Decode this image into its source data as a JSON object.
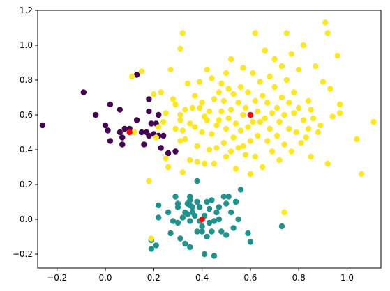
{
  "chart_data": {
    "type": "scatter",
    "title": "",
    "xlabel": "",
    "ylabel": "",
    "xlim": [
      -0.28,
      1.14
    ],
    "ylim": [
      -0.28,
      1.2
    ],
    "grid": false,
    "xticks": [
      -0.2,
      0.0,
      0.2,
      0.4,
      0.6,
      0.8,
      1.0
    ],
    "xtick_labels": [
      "−0.2",
      "0.0",
      "0.2",
      "0.4",
      "0.6",
      "0.8",
      "1.0"
    ],
    "yticks": [
      -0.2,
      0.0,
      0.2,
      0.4,
      0.6,
      0.8,
      1.0,
      1.2
    ],
    "ytick_labels": [
      "−0.2",
      "0.0",
      "0.2",
      "0.4",
      "0.6",
      "0.8",
      "1.0",
      "1.2"
    ],
    "series": [
      {
        "color": "#440154",
        "points": [
          [
            -0.26,
            0.54
          ],
          [
            -0.09,
            0.73
          ],
          [
            -0.04,
            0.6
          ],
          [
            0.0,
            0.54
          ],
          [
            0.02,
            0.66
          ],
          [
            0.01,
            0.51
          ],
          [
            0.02,
            0.45
          ],
          [
            0.06,
            0.63
          ],
          [
            0.06,
            0.5
          ],
          [
            0.07,
            0.43
          ],
          [
            0.07,
            0.47
          ],
          [
            0.08,
            0.52
          ],
          [
            0.1,
            0.52
          ],
          [
            0.12,
            0.5
          ],
          [
            0.13,
            0.83
          ],
          [
            0.13,
            0.57
          ],
          [
            0.15,
            0.5
          ],
          [
            0.16,
            0.43
          ],
          [
            0.17,
            0.5
          ],
          [
            0.18,
            0.62
          ],
          [
            0.18,
            0.69
          ],
          [
            0.18,
            0.48
          ],
          [
            0.19,
            0.55
          ],
          [
            0.2,
            0.49
          ],
          [
            0.21,
            0.55
          ],
          [
            0.22,
            0.48
          ],
          [
            0.22,
            0.6
          ],
          [
            0.23,
            0.41
          ],
          [
            0.24,
            0.48
          ],
          [
            0.26,
            0.38
          ],
          [
            0.29,
            0.39
          ]
        ]
      },
      {
        "color": "#21918c",
        "points": [
          [
            0.19,
            -0.12
          ],
          [
            0.19,
            -0.17
          ],
          [
            0.21,
            -0.15
          ],
          [
            0.22,
            0.01
          ],
          [
            0.22,
            0.08
          ],
          [
            0.26,
            0.04
          ],
          [
            0.27,
            -0.08
          ],
          [
            0.28,
            -0.01
          ],
          [
            0.29,
            0.13
          ],
          [
            0.3,
            0.09
          ],
          [
            0.3,
            0.07
          ],
          [
            0.3,
            -0.02
          ],
          [
            0.31,
            -0.11
          ],
          [
            0.32,
            0.01
          ],
          [
            0.33,
            0.04
          ],
          [
            0.33,
            -0.14
          ],
          [
            0.34,
            0.03
          ],
          [
            0.34,
            0.09
          ],
          [
            0.35,
            0.13
          ],
          [
            0.35,
            0.11
          ],
          [
            0.35,
            0.08
          ],
          [
            0.35,
            -0.01
          ],
          [
            0.35,
            -0.16
          ],
          [
            0.36,
            0.07
          ],
          [
            0.36,
            0.04
          ],
          [
            0.37,
            0.02
          ],
          [
            0.38,
            0.22
          ],
          [
            0.38,
            0.1
          ],
          [
            0.38,
            -0.07
          ],
          [
            0.39,
            0.07
          ],
          [
            0.39,
            -0.01
          ],
          [
            0.4,
            -0.04
          ],
          [
            0.4,
            -0.07
          ],
          [
            0.41,
            0.02
          ],
          [
            0.41,
            -0.2
          ],
          [
            0.42,
            -0.1
          ],
          [
            0.42,
            0.1
          ],
          [
            0.43,
            0.06
          ],
          [
            0.43,
            -0.02
          ],
          [
            0.44,
            0.11
          ],
          [
            0.44,
            -0.07
          ],
          [
            0.45,
            -0.01
          ],
          [
            0.45,
            -0.21
          ],
          [
            0.46,
            0.04
          ],
          [
            0.47,
            0.07
          ],
          [
            0.47,
            0.0
          ],
          [
            0.48,
            -0.07
          ],
          [
            0.49,
            0.13
          ],
          [
            0.5,
            0.09
          ],
          [
            0.5,
            -0.09
          ],
          [
            0.51,
            0.13
          ],
          [
            0.52,
            0.04
          ],
          [
            0.53,
            -0.05
          ],
          [
            0.54,
            0.1
          ],
          [
            0.55,
            0.0
          ],
          [
            0.56,
            0.17
          ],
          [
            0.59,
            -0.08
          ],
          [
            0.6,
            -0.13
          ],
          [
            0.73,
            -0.04
          ]
        ]
      },
      {
        "color": "#fde725",
        "points": [
          [
            0.11,
            0.82
          ],
          [
            0.12,
            0.5
          ],
          [
            0.15,
            0.85
          ],
          [
            0.18,
            0.22
          ],
          [
            0.19,
            -0.11
          ],
          [
            0.2,
            0.72
          ],
          [
            0.21,
            0.47
          ],
          [
            0.22,
            0.53
          ],
          [
            0.23,
            0.73
          ],
          [
            0.24,
            0.56
          ],
          [
            0.25,
            0.61
          ],
          [
            0.25,
            0.35
          ],
          [
            0.26,
            0.3
          ],
          [
            0.27,
            0.86
          ],
          [
            0.28,
            0.69
          ],
          [
            0.29,
            0.52
          ],
          [
            0.29,
            0.66
          ],
          [
            0.31,
            0.98
          ],
          [
            0.31,
            0.45
          ],
          [
            0.31,
            0.57
          ],
          [
            0.31,
            0.6
          ],
          [
            0.32,
            0.51
          ],
          [
            0.32,
            1.07
          ],
          [
            0.32,
            0.27
          ],
          [
            0.33,
            0.46
          ],
          [
            0.33,
            0.63
          ],
          [
            0.34,
            0.78
          ],
          [
            0.35,
            0.34
          ],
          [
            0.35,
            0.55
          ],
          [
            0.36,
            0.64
          ],
          [
            0.37,
            0.71
          ],
          [
            0.37,
            0.53
          ],
          [
            0.38,
            0.42
          ],
          [
            0.38,
            0.33
          ],
          [
            0.39,
            0.79
          ],
          [
            0.39,
            0.64
          ],
          [
            0.4,
            0.5
          ],
          [
            0.4,
            0.67
          ],
          [
            0.41,
            0.32
          ],
          [
            0.41,
            0.59
          ],
          [
            0.42,
            0.57
          ],
          [
            0.42,
            0.86
          ],
          [
            0.43,
            0.4
          ],
          [
            0.43,
            0.62
          ],
          [
            0.44,
            0.81
          ],
          [
            0.44,
            0.49
          ],
          [
            0.45,
            0.69
          ],
          [
            0.45,
            0.32
          ],
          [
            0.46,
            0.41
          ],
          [
            0.46,
            0.54
          ],
          [
            0.47,
            0.73
          ],
          [
            0.47,
            0.57
          ],
          [
            0.48,
            0.62
          ],
          [
            0.48,
            0.78
          ],
          [
            0.49,
            0.44
          ],
          [
            0.49,
            0.68
          ],
          [
            0.5,
            0.84
          ],
          [
            0.5,
            0.52
          ],
          [
            0.5,
            0.36
          ],
          [
            0.51,
            0.75
          ],
          [
            0.51,
            0.58
          ],
          [
            0.52,
            0.39
          ],
          [
            0.52,
            0.63
          ],
          [
            0.52,
            0.92
          ],
          [
            0.53,
            0.47
          ],
          [
            0.53,
            0.72
          ],
          [
            0.54,
            0.55
          ],
          [
            0.54,
            0.29
          ],
          [
            0.55,
            0.67
          ],
          [
            0.55,
            0.41
          ],
          [
            0.56,
            0.51
          ],
          [
            0.56,
            0.76
          ],
          [
            0.57,
            0.6
          ],
          [
            0.57,
            0.42
          ],
          [
            0.57,
            0.87
          ],
          [
            0.58,
            0.64
          ],
          [
            0.58,
            0.37
          ],
          [
            0.59,
            0.53
          ],
          [
            0.59,
            0.73
          ],
          [
            0.6,
            0.45
          ],
          [
            0.6,
            0.26
          ],
          [
            0.61,
            0.56
          ],
          [
            0.61,
            0.84
          ],
          [
            0.62,
            0.68
          ],
          [
            0.62,
            0.36
          ],
          [
            0.62,
            1.07
          ],
          [
            0.63,
            0.62
          ],
          [
            0.63,
            0.48
          ],
          [
            0.64,
            0.79
          ],
          [
            0.64,
            0.56
          ],
          [
            0.65,
            0.71
          ],
          [
            0.65,
            0.3
          ],
          [
            0.66,
            0.58
          ],
          [
            0.66,
            0.97
          ],
          [
            0.67,
            0.45
          ],
          [
            0.67,
            0.67
          ],
          [
            0.68,
            0.52
          ],
          [
            0.68,
            0.82
          ],
          [
            0.69,
            0.39
          ],
          [
            0.69,
            0.61
          ],
          [
            0.7,
            0.76
          ],
          [
            0.7,
            0.92
          ],
          [
            0.71,
            0.48
          ],
          [
            0.71,
            0.64
          ],
          [
            0.72,
            0.56
          ],
          [
            0.72,
            0.34
          ],
          [
            0.73,
            0.7
          ],
          [
            0.73,
            0.88
          ],
          [
            0.74,
            0.04
          ],
          [
            0.74,
            0.43
          ],
          [
            0.74,
            0.6
          ],
          [
            0.75,
            0.8
          ],
          [
            0.75,
            1.07
          ],
          [
            0.76,
            0.52
          ],
          [
            0.76,
            0.67
          ],
          [
            0.77,
            0.39
          ],
          [
            0.77,
            0.95
          ],
          [
            0.78,
            0.61
          ],
          [
            0.78,
            0.73
          ],
          [
            0.79,
            0.5
          ],
          [
            0.8,
            0.86
          ],
          [
            0.8,
            0.64
          ],
          [
            0.81,
            0.44
          ],
          [
            0.82,
            1.0
          ],
          [
            0.82,
            0.57
          ],
          [
            0.83,
            0.47
          ],
          [
            0.84,
            0.68
          ],
          [
            0.84,
            0.52
          ],
          [
            0.85,
            0.63
          ],
          [
            0.85,
            0.36
          ],
          [
            0.86,
            0.58
          ],
          [
            0.87,
            0.88
          ],
          [
            0.88,
            0.5
          ],
          [
            0.89,
            0.54
          ],
          [
            0.9,
            0.79
          ],
          [
            0.91,
            1.13
          ],
          [
            0.92,
            1.07
          ],
          [
            0.92,
            0.32
          ],
          [
            0.93,
            0.75
          ],
          [
            0.94,
            0.59
          ],
          [
            0.96,
            0.94
          ],
          [
            0.97,
            0.66
          ],
          [
            0.97,
            0.61
          ],
          [
            1.04,
            0.46
          ],
          [
            1.06,
            0.26
          ],
          [
            1.11,
            0.56
          ]
        ]
      },
      {
        "color": "#ff0000",
        "points": [
          [
            0.1,
            0.5
          ],
          [
            0.4,
            0.0
          ],
          [
            0.6,
            0.6
          ]
        ]
      }
    ]
  }
}
